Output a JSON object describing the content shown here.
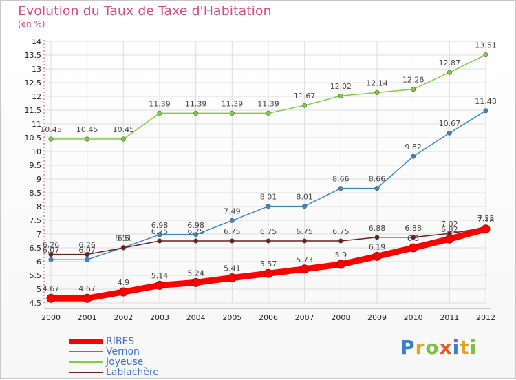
{
  "title": "Evolution du Taux de Taxe d'Habitation",
  "subtitle": "(en %)",
  "logo": {
    "letters": [
      "P",
      "r",
      "o",
      "x",
      "i",
      "t",
      "i"
    ],
    "colors": [
      "#3b7fc4",
      "#e8a020",
      "#7cc242",
      "#e05a2a",
      "#3b7fc4",
      "#e8a020",
      "#7cc242"
    ]
  },
  "chart_data": {
    "type": "line",
    "x": [
      "2000",
      "2001",
      "2002",
      "2003",
      "2004",
      "2005",
      "2006",
      "2007",
      "2008",
      "2009",
      "2010",
      "2011",
      "2012"
    ],
    "ylim": [
      4.5,
      14
    ],
    "yticks": [
      "4.5",
      "5",
      "5.5",
      "6",
      "6.5",
      "7",
      "7.5",
      "8",
      "8.5",
      "9",
      "9.5",
      "10",
      "10.5",
      "11",
      "11.5",
      "12",
      "12.5",
      "13",
      "13.5",
      "14"
    ],
    "grid": true,
    "legend_position": "bottom-left",
    "series": [
      {
        "name": "RIBES",
        "color": "#ff0000",
        "values": [
          4.67,
          4.67,
          4.9,
          5.14,
          5.24,
          5.41,
          5.57,
          5.73,
          5.9,
          6.19,
          6.5,
          6.82,
          7.18
        ],
        "labels": [
          "4.67",
          "4.67",
          "4.9",
          "5.14",
          "5.24",
          "5.41",
          "5.57",
          "5.73",
          "5.9",
          "6.19",
          "6.5",
          "6.82",
          "7.18"
        ]
      },
      {
        "name": "Vernon",
        "color": "#3a87c8",
        "values": [
          6.07,
          6.07,
          6.51,
          6.98,
          6.98,
          7.49,
          8.01,
          8.01,
          8.66,
          8.66,
          9.82,
          10.67,
          11.48
        ],
        "labels": [
          "6.07",
          "6.07",
          "6.51",
          "6.98",
          "6.98",
          "7.49",
          "8.01",
          "8.01",
          "8.66",
          "8.66",
          "9.82",
          "10.67",
          "11.48"
        ]
      },
      {
        "name": "Joyeuse",
        "color": "#7fcc3f",
        "values": [
          10.45,
          10.45,
          10.45,
          11.39,
          11.39,
          11.39,
          11.39,
          11.67,
          12.02,
          12.14,
          12.26,
          12.87,
          13.51
        ],
        "labels": [
          "10.45",
          "10.45",
          "10.45",
          "11.39",
          "11.39",
          "11.39",
          "11.39",
          "11.67",
          "12.02",
          "12.14",
          "12.26",
          "12.87",
          "13.51"
        ]
      },
      {
        "name": "Lablachère",
        "color": "#6b1f1f",
        "values": [
          6.26,
          6.26,
          6.5,
          6.75,
          6.75,
          6.75,
          6.75,
          6.75,
          6.75,
          6.88,
          6.88,
          7.02,
          7.23
        ],
        "labels": [
          "6.26",
          "6.26",
          "6.5",
          "6.75",
          "6.75",
          "6.75",
          "6.75",
          "6.75",
          "6.75",
          "6.88",
          "6.88",
          "7.02",
          "7.23"
        ]
      }
    ]
  }
}
